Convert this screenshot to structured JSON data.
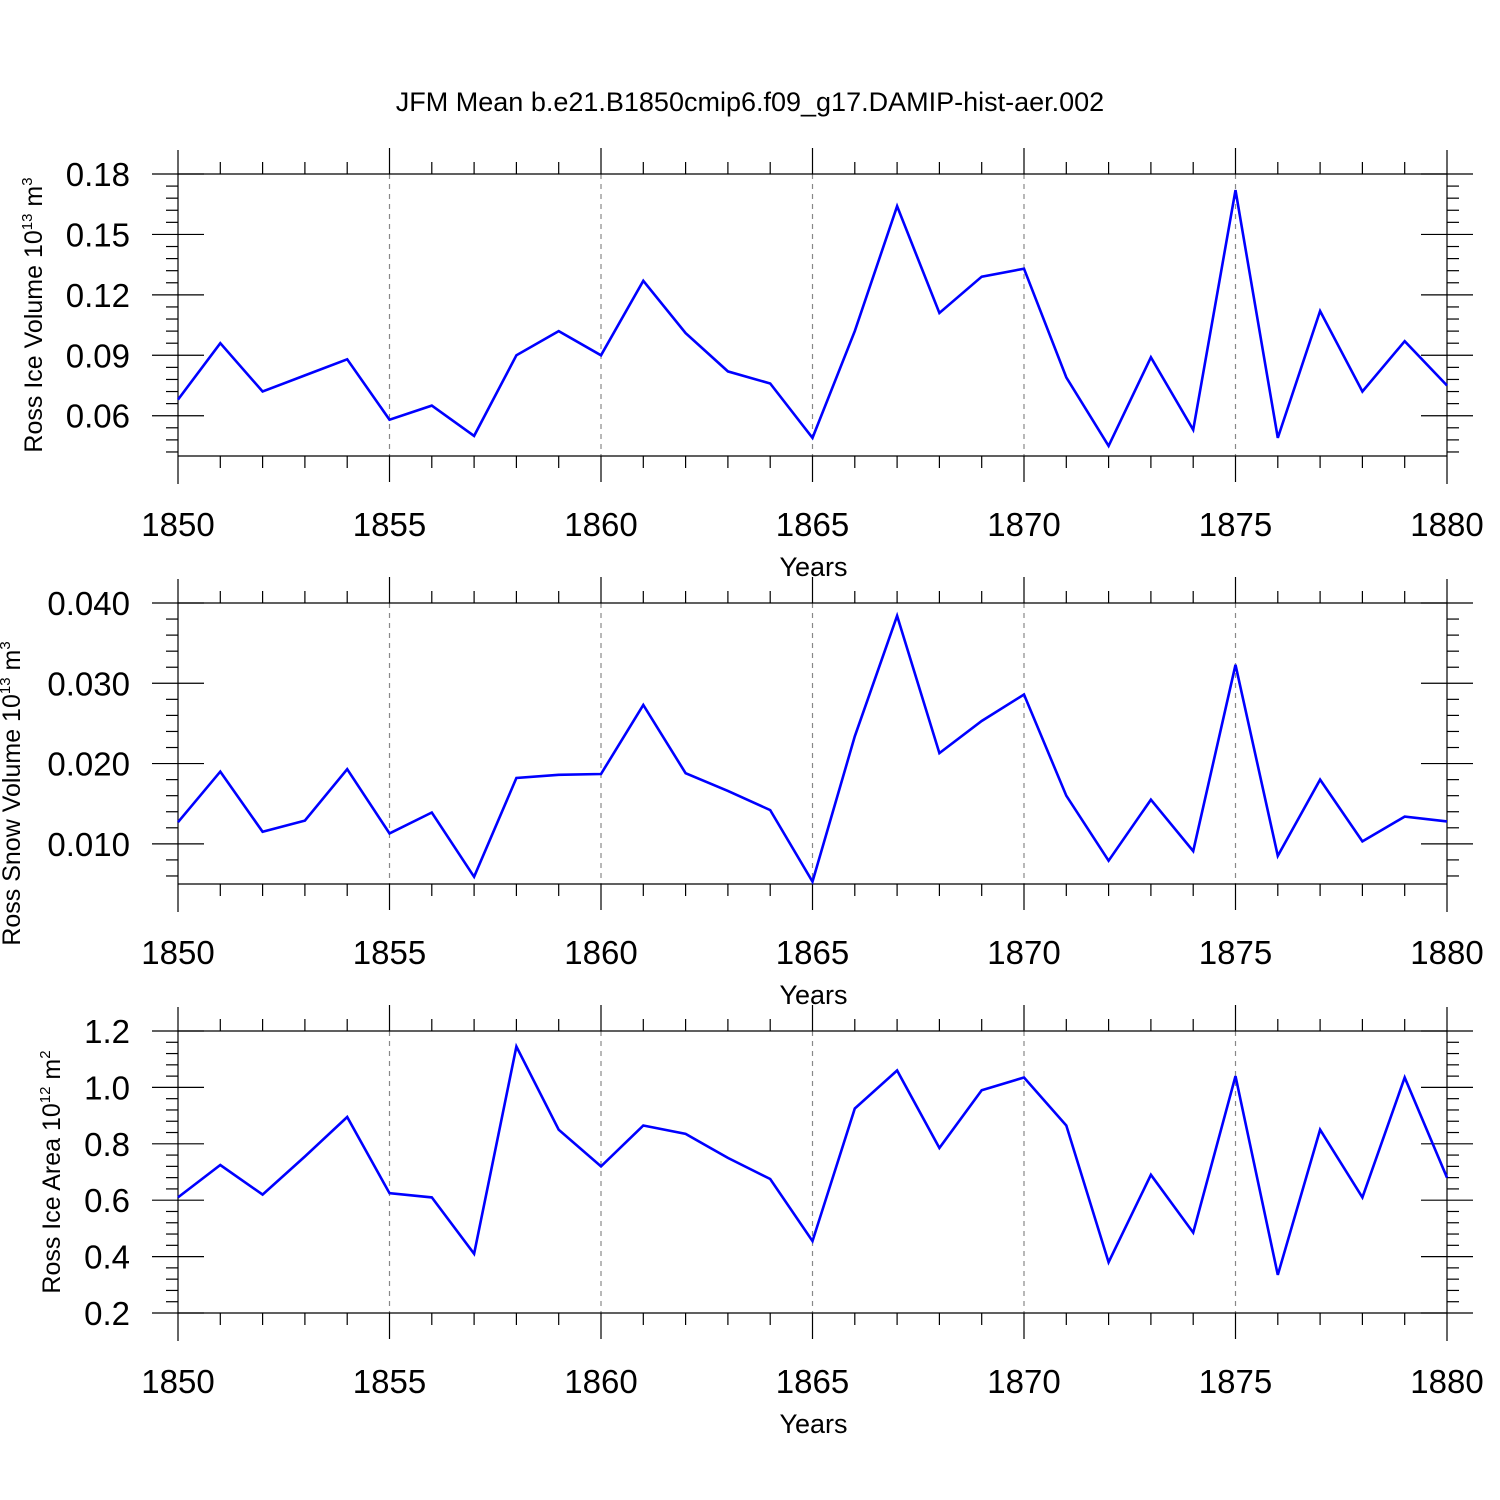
{
  "title": "JFM Mean b.e21.B1850cmip6.f09_g17.DAMIP-hist-aer.002",
  "colors": {
    "series": "#0000ff",
    "axis": "#000000",
    "grid": "#888888"
  },
  "chart_data": [
    {
      "type": "line",
      "ylabel": "Ross Ice Volume 10",
      "ylabel_exp": "13",
      "ylabel_unit": " m",
      "ylabel_unit_exp": "3",
      "xlabel": "Years",
      "xlim": [
        1850,
        1880
      ],
      "ylim": [
        0.04,
        0.18
      ],
      "yticks": [
        0.06,
        0.09,
        0.12,
        0.15,
        0.18
      ],
      "ytick_labels": [
        "0.06",
        "0.09",
        "0.12",
        "0.15",
        "0.18"
      ],
      "xticks": [
        1850,
        1855,
        1860,
        1865,
        1870,
        1875,
        1880
      ],
      "xtick_labels": [
        "1850",
        "1855",
        "1860",
        "1865",
        "1870",
        "1875",
        "1880"
      ],
      "x": [
        1850,
        1851,
        1852,
        1853,
        1854,
        1855,
        1856,
        1857,
        1858,
        1859,
        1860,
        1861,
        1862,
        1863,
        1864,
        1865,
        1866,
        1867,
        1868,
        1869,
        1870,
        1871,
        1872,
        1873,
        1874,
        1875,
        1876,
        1877,
        1878,
        1879,
        1880
      ],
      "values": [
        0.068,
        0.096,
        0.072,
        0.08,
        0.088,
        0.058,
        0.065,
        0.05,
        0.09,
        0.102,
        0.09,
        0.127,
        0.101,
        0.082,
        0.076,
        0.049,
        0.102,
        0.164,
        0.111,
        0.129,
        0.133,
        0.079,
        0.045,
        0.089,
        0.053,
        0.172,
        0.049,
        0.112,
        0.072,
        0.097,
        0.075
      ]
    },
    {
      "type": "line",
      "ylabel": "Ross Snow Volume 10",
      "ylabel_exp": "13",
      "ylabel_unit": " m",
      "ylabel_unit_exp": "3",
      "xlabel": "Years",
      "xlim": [
        1850,
        1880
      ],
      "ylim": [
        0.005,
        0.04
      ],
      "yticks": [
        0.01,
        0.02,
        0.03,
        0.04
      ],
      "ytick_labels": [
        "0.010",
        "0.020",
        "0.030",
        "0.040"
      ],
      "xticks": [
        1850,
        1855,
        1860,
        1865,
        1870,
        1875,
        1880
      ],
      "xtick_labels": [
        "1850",
        "1855",
        "1860",
        "1865",
        "1870",
        "1875",
        "1880"
      ],
      "x": [
        1850,
        1851,
        1852,
        1853,
        1854,
        1855,
        1856,
        1857,
        1858,
        1859,
        1860,
        1861,
        1862,
        1863,
        1864,
        1865,
        1866,
        1867,
        1868,
        1869,
        1870,
        1871,
        1872,
        1873,
        1874,
        1875,
        1876,
        1877,
        1878,
        1879,
        1880
      ],
      "values": [
        0.0127,
        0.019,
        0.0115,
        0.0129,
        0.0193,
        0.0113,
        0.0139,
        0.0059,
        0.0182,
        0.0186,
        0.0187,
        0.0273,
        0.0188,
        0.0166,
        0.0142,
        0.0053,
        0.0234,
        0.0384,
        0.0213,
        0.0253,
        0.0286,
        0.016,
        0.0079,
        0.0155,
        0.0091,
        0.0323,
        0.0085,
        0.018,
        0.0103,
        0.0134,
        0.0128
      ]
    },
    {
      "type": "line",
      "ylabel": "Ross Ice Area 10",
      "ylabel_exp": "12",
      "ylabel_unit": " m",
      "ylabel_unit_exp": "2",
      "xlabel": "Years",
      "xlim": [
        1850,
        1880
      ],
      "ylim": [
        0.2,
        1.2
      ],
      "yticks": [
        0.2,
        0.4,
        0.6,
        0.8,
        1.0,
        1.2
      ],
      "ytick_labels": [
        "0.2",
        "0.4",
        "0.6",
        "0.8",
        "1.0",
        "1.2"
      ],
      "xticks": [
        1850,
        1855,
        1860,
        1865,
        1870,
        1875,
        1880
      ],
      "xtick_labels": [
        "1850",
        "1855",
        "1860",
        "1865",
        "1870",
        "1875",
        "1880"
      ],
      "x": [
        1850,
        1851,
        1852,
        1853,
        1854,
        1855,
        1856,
        1857,
        1858,
        1859,
        1860,
        1861,
        1862,
        1863,
        1864,
        1865,
        1866,
        1867,
        1868,
        1869,
        1870,
        1871,
        1872,
        1873,
        1874,
        1875,
        1876,
        1877,
        1878,
        1879,
        1880
      ],
      "values": [
        0.61,
        0.725,
        0.62,
        0.755,
        0.895,
        0.625,
        0.61,
        0.41,
        1.145,
        0.85,
        0.72,
        0.865,
        0.835,
        0.75,
        0.675,
        0.455,
        0.925,
        1.06,
        0.785,
        0.99,
        1.035,
        0.865,
        0.38,
        0.69,
        0.485,
        1.04,
        0.335,
        0.85,
        0.61,
        1.035,
        0.68
      ]
    }
  ]
}
